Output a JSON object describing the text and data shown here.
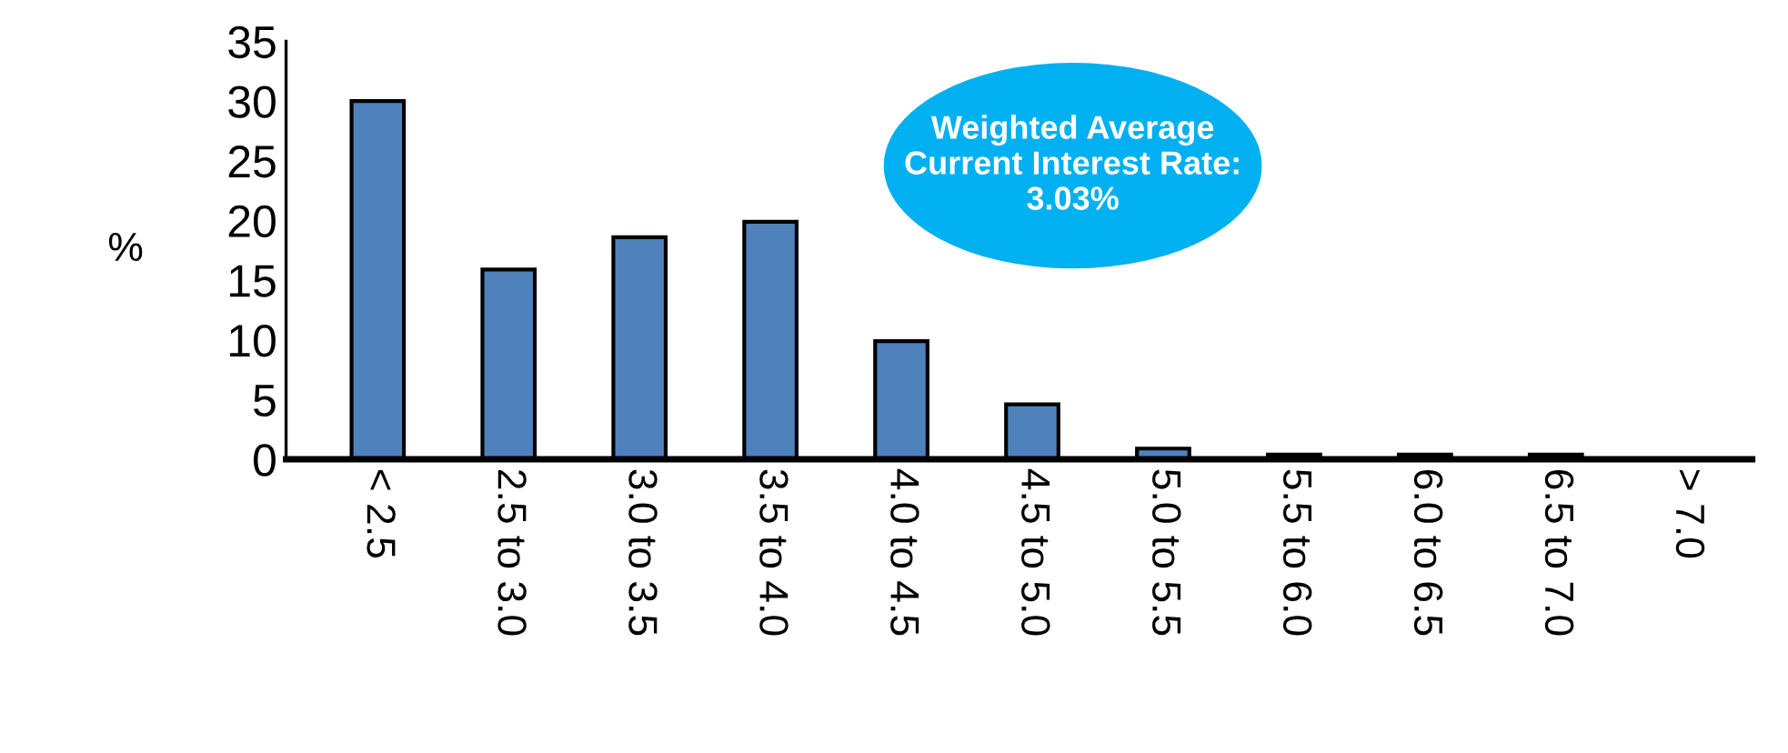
{
  "chart_data": {
    "type": "bar",
    "categories": [
      "< 2.5",
      "2.5 to 3.0",
      "3.0 to 3.5",
      "3.5 to 4.0",
      "4.0 to 4.5",
      "4.5 to 5.0",
      "5.0 to 5.5",
      "5.5 to 6.0",
      "6.0 to 6.5",
      "6.5 to 7.0",
      "> 7.0"
    ],
    "values": [
      30.0,
      15.9,
      18.6,
      19.9,
      9.9,
      4.6,
      0.9,
      0.4,
      0.4,
      0.4,
      0
    ],
    "color": "#4f81bd",
    "ylabel": "%",
    "ylim": [
      0,
      35
    ],
    "yticks": [
      0,
      5,
      10,
      15,
      20,
      25,
      30,
      35
    ],
    "annotations": [
      "Weighted Average\nCurrent Interest Rate:\n3.03%"
    ],
    "grid": false,
    "legend": false
  }
}
